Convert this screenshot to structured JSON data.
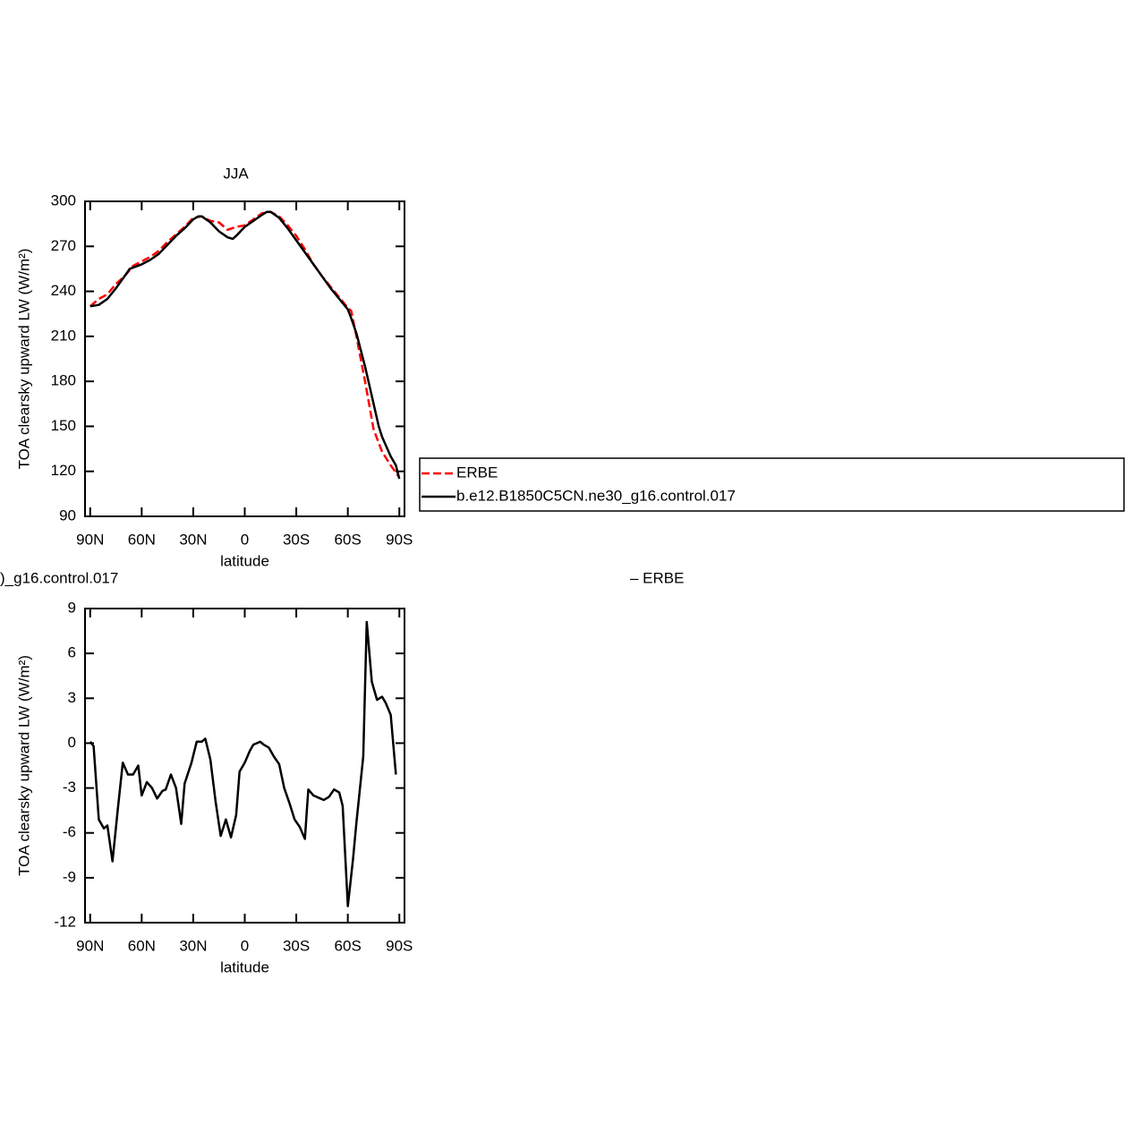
{
  "chart_data": [
    {
      "type": "line",
      "title": "JJA",
      "xlabel": "latitude",
      "ylabel": "TOA clearsky upward LW (W/m²)",
      "xlim": [
        93,
        -93
      ],
      "xticks": [
        {
          "value": 90,
          "label": "90N"
        },
        {
          "value": 60,
          "label": "60N"
        },
        {
          "value": 30,
          "label": "30N"
        },
        0,
        {
          "value": -30,
          "label": "30S"
        },
        {
          "value": -60,
          "label": "60S"
        },
        {
          "value": -90,
          "label": "90S"
        }
      ],
      "ylim": [
        90,
        300
      ],
      "yticks": [
        90,
        120,
        150,
        180,
        210,
        240,
        270,
        300
      ],
      "legend": "right",
      "series": [
        {
          "name": "ERBE",
          "color": "#ff0000",
          "dashed": true,
          "x": [
            90,
            85,
            80,
            75,
            70,
            65,
            60,
            55,
            50,
            45,
            40,
            35,
            30,
            25,
            20,
            15,
            10,
            5,
            0,
            -5,
            -10,
            -15,
            -20,
            -25,
            -30,
            -35,
            -40,
            -45,
            -50,
            -55,
            -60,
            -62,
            -65,
            -70,
            -75,
            -80,
            -85,
            -90
          ],
          "values": [
            230,
            235,
            238,
            245,
            250,
            257,
            260,
            263,
            267,
            273,
            278,
            283,
            289,
            290,
            287,
            286,
            281,
            283,
            284,
            288,
            292,
            293,
            290,
            284,
            277,
            268,
            258,
            250,
            243,
            236,
            229,
            227,
            210,
            180,
            148,
            133,
            124,
            116
          ]
        },
        {
          "name": "b.e12.B1850C5CN.ne30_g16.control.017",
          "color": "#000000",
          "dashed": false,
          "x": [
            90,
            85,
            80,
            75,
            70,
            67,
            60,
            55,
            50,
            45,
            40,
            35,
            30,
            27,
            25,
            20,
            15,
            10,
            7,
            5,
            0,
            -5,
            -10,
            -13,
            -15,
            -20,
            -25,
            -30,
            -35,
            -40,
            -45,
            -50,
            -55,
            -60,
            -62,
            -65,
            -70,
            -75,
            -78,
            -80,
            -85,
            -88,
            -90
          ],
          "values": [
            230,
            231,
            235,
            242,
            250,
            255,
            258,
            261,
            265,
            271,
            277,
            282,
            288,
            290,
            290,
            286,
            280,
            276,
            275,
            277,
            283,
            287,
            291,
            293,
            293,
            289,
            282,
            274,
            266,
            258,
            250,
            242,
            235,
            228,
            222,
            212,
            190,
            165,
            150,
            143,
            130,
            124,
            115
          ]
        }
      ]
    },
    {
      "type": "line",
      "title": [
        ")_g16.control.017",
        "– ERBE"
      ],
      "xlabel": "latitude",
      "ylabel": "TOA clearsky upward LW (W/m²)",
      "xlim": [
        93,
        -93
      ],
      "xticks": [
        {
          "value": 90,
          "label": "90N"
        },
        {
          "value": 60,
          "label": "60N"
        },
        {
          "value": 30,
          "label": "30N"
        },
        0,
        {
          "value": -30,
          "label": "30S"
        },
        {
          "value": -60,
          "label": "60S"
        },
        {
          "value": -90,
          "label": "90S"
        }
      ],
      "ylim": [
        -12,
        9
      ],
      "yticks": [
        -12,
        -9,
        -6,
        -3,
        0,
        3,
        6,
        9
      ],
      "series": [
        {
          "color": "#000000",
          "dashed": false,
          "x": [
            90,
            88,
            85,
            82,
            80,
            77,
            74,
            71,
            68,
            65,
            62,
            60,
            57,
            54,
            51,
            48,
            46,
            43,
            40,
            37,
            35,
            31,
            28,
            25,
            23,
            20,
            17,
            14,
            11,
            8,
            5,
            3,
            0,
            -3,
            -5,
            -9,
            -11,
            -14,
            -17,
            -20,
            -23,
            -26,
            -29,
            -32,
            -35,
            -37,
            -40,
            -44,
            -46,
            -49,
            -52,
            -55,
            -57,
            -60,
            -63,
            -65,
            -69,
            -71,
            -74,
            -77,
            -80,
            -82,
            -85,
            -88
          ],
          "values": [
            0.1,
            -0.2,
            -5.1,
            -5.7,
            -5.5,
            -7.9,
            -4.5,
            -1.3,
            -2.1,
            -2.1,
            -1.5,
            -3.5,
            -2.6,
            -3.0,
            -3.7,
            -3.2,
            -3.1,
            -2.1,
            -3.0,
            -5.4,
            -2.7,
            -1.3,
            0.1,
            0.1,
            0.3,
            -1.1,
            -3.9,
            -6.2,
            -5.1,
            -6.3,
            -4.8,
            -1.9,
            -1.3,
            -0.5,
            -0.1,
            0.1,
            -0.1,
            -0.3,
            -0.9,
            -1.4,
            -3.0,
            -4.0,
            -5.1,
            -5.6,
            -6.4,
            -3.1,
            -3.5,
            -3.7,
            -3.8,
            -3.6,
            -3.1,
            -3.3,
            -4.2,
            -10.9,
            -7.8,
            -5.3,
            -0.9,
            8.1,
            4.1,
            2.9,
            3.1,
            2.7,
            1.9,
            -2.1
          ]
        }
      ]
    }
  ]
}
